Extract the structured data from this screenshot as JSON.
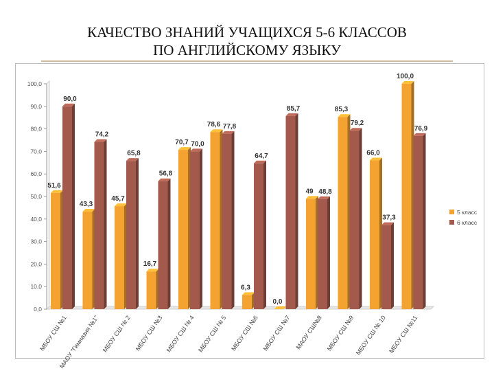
{
  "page": {
    "title_line1": "КАЧЕСТВО ЗНАНИЙ УЧАЩИХСЯ 5-6 КЛАССОВ",
    "title_line2": "ПО АНГЛИЙСКОМУ ЯЗЫКУ"
  },
  "chart_data": {
    "type": "bar",
    "title": "",
    "xlabel": "",
    "ylabel": "",
    "ylim": [
      0,
      100
    ],
    "yticks": [
      "0,0",
      "10,0",
      "20,0",
      "30,0",
      "40,0",
      "50,0",
      "60,0",
      "70,0",
      "80,0",
      "90,0",
      "100,0"
    ],
    "categories": [
      "МБОУ СШ №1",
      "МАОУ \"Гимназия №1\"",
      "МБОУ СШ № 2",
      "МБОУ СШ №3",
      "МБОУ СШ № 4",
      "МБОУ СШ № 5",
      "МБОУ СШ №6",
      "МБОУ СШ №7",
      "МАОУ СШ№8",
      "МБОУ СШ №9",
      "МБОУ СШ № 10",
      "МБОУ СШ №11"
    ],
    "series": [
      {
        "name": "5 класс",
        "color": "#f4a330",
        "values": [
          51.6,
          43.3,
          45.7,
          16.7,
          70.7,
          78.6,
          6.3,
          0.0,
          49.0,
          85.3,
          66.0,
          100.0
        ],
        "labels": [
          "51,6",
          "43,3",
          "45,7",
          "16,7",
          "70,7",
          "78,6",
          "6,3",
          "0,0",
          "49",
          "85,3",
          "66,0",
          "100,0"
        ]
      },
      {
        "name": "6 класс",
        "color": "#a35a4c",
        "values": [
          90.0,
          74.2,
          65.8,
          56.8,
          70.0,
          77.8,
          64.7,
          85.7,
          48.8,
          79.2,
          37.3,
          76.9
        ],
        "labels": [
          "90,0",
          "74,2",
          "65,8",
          "56,8",
          "70,0",
          "77,8",
          "64,7",
          "85,7",
          "48,8",
          "79,2",
          "37,3",
          "76,9"
        ]
      }
    ],
    "legend_position": "right",
    "grid": false
  }
}
